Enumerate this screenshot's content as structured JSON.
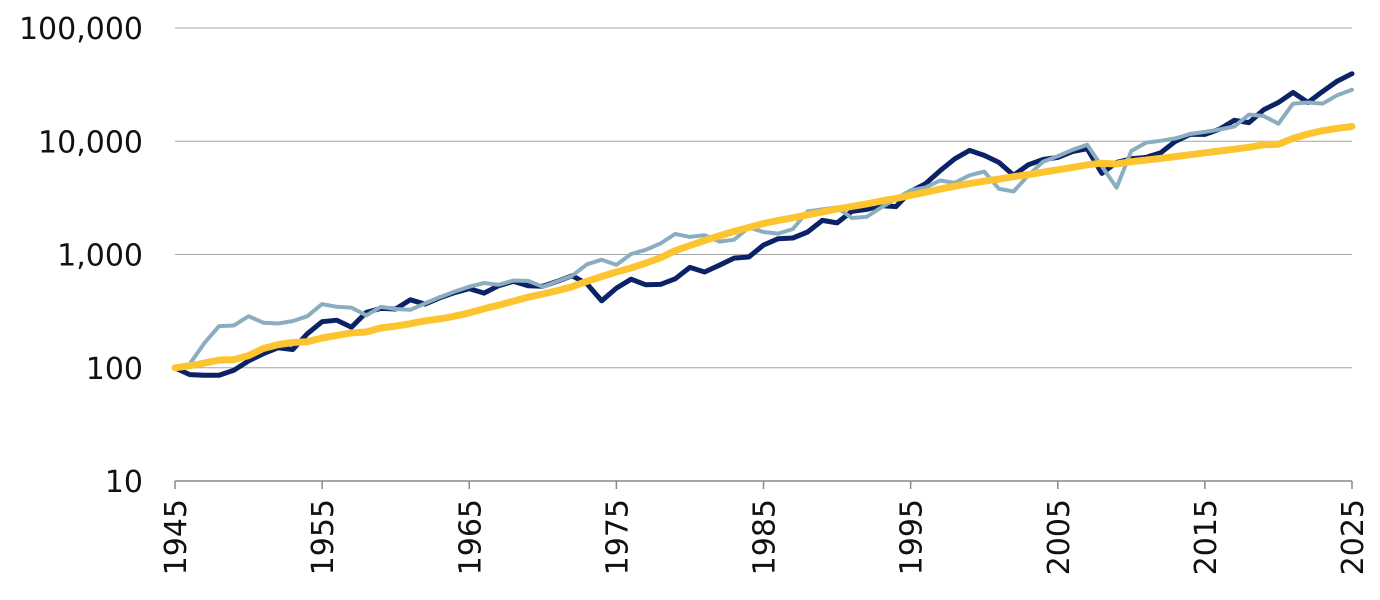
{
  "chart_data": {
    "type": "line",
    "title": "",
    "xlabel": "",
    "ylabel": "",
    "y_scale": "log",
    "ylim": [
      10,
      100000
    ],
    "xlim": [
      1945,
      2025
    ],
    "y_ticks": [
      {
        "value": 10,
        "label": "10"
      },
      {
        "value": 100,
        "label": "100"
      },
      {
        "value": 1000,
        "label": "1,000"
      },
      {
        "value": 10000,
        "label": "10,000"
      },
      {
        "value": 100000,
        "label": "100,000"
      }
    ],
    "x_ticks": [
      {
        "value": 1945,
        "label": "1945"
      },
      {
        "value": 1955,
        "label": "1955"
      },
      {
        "value": 1965,
        "label": "1965"
      },
      {
        "value": 1975,
        "label": "1975"
      },
      {
        "value": 1985,
        "label": "1985"
      },
      {
        "value": 1995,
        "label": "1995"
      },
      {
        "value": 2005,
        "label": "2005"
      },
      {
        "value": 2015,
        "label": "2015"
      },
      {
        "value": 2025,
        "label": "2025"
      }
    ],
    "grid": true,
    "legend": "none",
    "x": [
      1945,
      1946,
      1947,
      1948,
      1949,
      1950,
      1951,
      1952,
      1953,
      1954,
      1955,
      1956,
      1957,
      1958,
      1959,
      1960,
      1961,
      1962,
      1963,
      1964,
      1965,
      1966,
      1967,
      1968,
      1969,
      1970,
      1971,
      1972,
      1973,
      1974,
      1975,
      1976,
      1977,
      1978,
      1979,
      1980,
      1981,
      1982,
      1983,
      1984,
      1985,
      1986,
      1987,
      1988,
      1989,
      1990,
      1991,
      1992,
      1993,
      1994,
      1995,
      1996,
      1997,
      1998,
      1999,
      2000,
      2001,
      2002,
      2003,
      2004,
      2005,
      2006,
      2007,
      2008,
      2009,
      2010,
      2011,
      2012,
      2013,
      2014,
      2015,
      2016,
      2017,
      2018,
      2019,
      2020,
      2021,
      2022,
      2023,
      2024,
      2025
    ],
    "series": [
      {
        "color": "#0b2366",
        "stroke_width": 5,
        "values": [
          100,
          87,
          86,
          86,
          95,
          115,
          133,
          150,
          145,
          200,
          255,
          263,
          228,
          308,
          334,
          330,
          398,
          365,
          415,
          460,
          500,
          456,
          530,
          580,
          530,
          525,
          580,
          650,
          550,
          390,
          505,
          605,
          540,
          545,
          610,
          770,
          700,
          805,
          930,
          950,
          1210,
          1380,
          1400,
          1580,
          2000,
          1900,
          2400,
          2500,
          2700,
          2650,
          3600,
          4200,
          5500,
          7000,
          8300,
          7500,
          6500,
          5000,
          6200,
          6900,
          7200,
          8100,
          8600,
          5200,
          6500,
          7000,
          7200,
          7900,
          10000,
          11500,
          11500,
          12800,
          15300,
          14600,
          19000,
          22000,
          27000,
          22000,
          27500,
          34000,
          39500
        ]
      },
      {
        "color": "#8aaebf",
        "stroke_width": 4,
        "values": [
          100,
          108,
          165,
          233,
          236,
          285,
          250,
          246,
          258,
          285,
          365,
          345,
          340,
          290,
          345,
          330,
          325,
          370,
          420,
          470,
          520,
          560,
          540,
          590,
          585,
          520,
          580,
          650,
          820,
          900,
          810,
          1010,
          1100,
          1250,
          1520,
          1430,
          1480,
          1300,
          1350,
          1730,
          1580,
          1530,
          1680,
          2400,
          2500,
          2600,
          2100,
          2150,
          2600,
          3100,
          3700,
          3900,
          4500,
          4300,
          5000,
          5400,
          3800,
          3600,
          5000,
          6600,
          7400,
          8400,
          9300,
          6000,
          3900,
          8200,
          9700,
          10100,
          10600,
          11600,
          12100,
          12700,
          13500,
          17200,
          16700,
          14300,
          21500,
          22000,
          21500,
          25500,
          28500
        ]
      },
      {
        "color": "#fcc530",
        "stroke_width": 7,
        "values": [
          100,
          104,
          110,
          117,
          118,
          128,
          148,
          160,
          167,
          170,
          183,
          193,
          203,
          207,
          225,
          233,
          245,
          260,
          270,
          285,
          305,
          332,
          357,
          388,
          420,
          448,
          480,
          520,
          580,
          640,
          700,
          760,
          840,
          935,
          1080,
          1200,
          1330,
          1460,
          1600,
          1730,
          1880,
          2000,
          2110,
          2240,
          2380,
          2520,
          2660,
          2800,
          2960,
          3130,
          3330,
          3540,
          3780,
          4010,
          4230,
          4440,
          4630,
          4860,
          5080,
          5330,
          5600,
          5880,
          6200,
          6400,
          6300,
          6600,
          6820,
          7050,
          7320,
          7610,
          7900,
          8200,
          8500,
          8850,
          9300,
          9400,
          10600,
          11600,
          12400,
          13000,
          13500
        ]
      }
    ]
  }
}
